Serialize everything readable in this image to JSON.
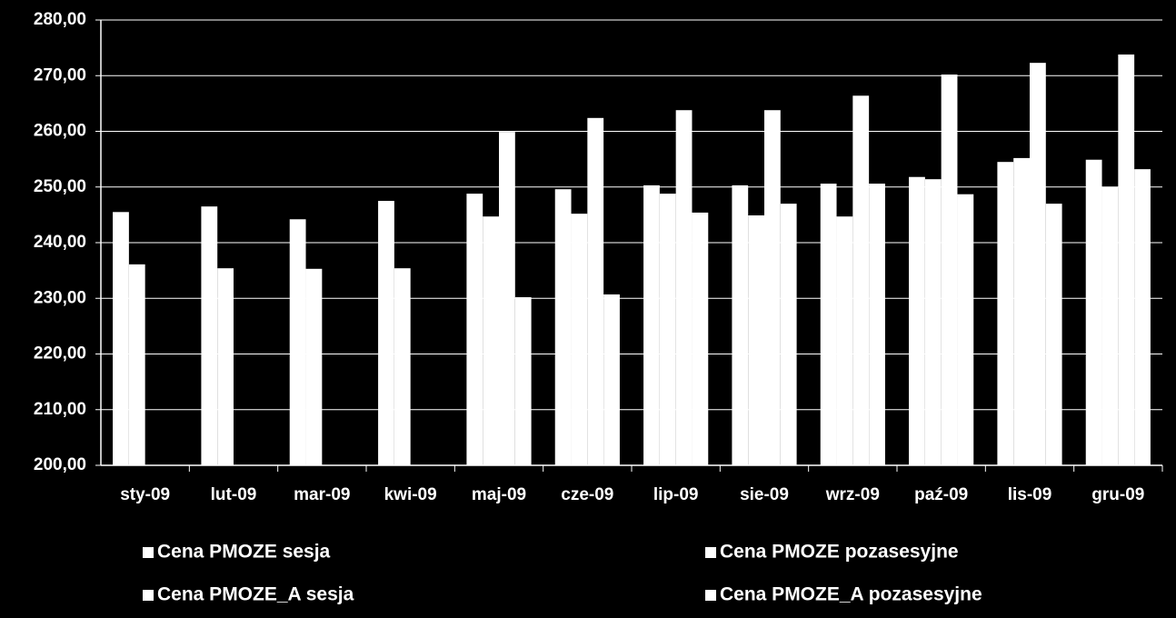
{
  "chart_data": {
    "type": "bar",
    "categories": [
      "sty-09",
      "lut-09",
      "mar-09",
      "kwi-09",
      "maj-09",
      "cze-09",
      "lip-09",
      "sie-09",
      "wrz-09",
      "paź-09",
      "lis-09",
      "gru-09"
    ],
    "series": [
      {
        "name": "Cena PMOZE sesja",
        "color": "#ffffff",
        "values": [
          245.5,
          246.5,
          244.2,
          247.5,
          248.8,
          249.6,
          250.3,
          250.3,
          250.6,
          251.8,
          254.5,
          254.9
        ]
      },
      {
        "name": "Cena PMOZE pozasesyjne",
        "color": "#ffffff",
        "values": [
          236.1,
          235.4,
          235.3,
          235.4,
          244.7,
          245.2,
          248.8,
          244.9,
          244.7,
          251.4,
          255.2,
          250.0
        ]
      },
      {
        "name": "Cena PMOZE_A sesja",
        "color": "#ffffff",
        "values": [
          null,
          null,
          null,
          null,
          259.9,
          262.4,
          263.8,
          263.8,
          266.4,
          270.2,
          272.3,
          273.8
        ]
      },
      {
        "name": "Cena PMOZE_A pozasesyjne",
        "color": "#ffffff",
        "values": [
          null,
          null,
          null,
          null,
          230.2,
          230.7,
          245.4,
          247.0,
          250.6,
          248.7,
          247.0,
          253.2
        ]
      }
    ],
    "ylim": [
      200,
      280
    ],
    "yticks": [
      {
        "value": 200,
        "label": "200,00"
      },
      {
        "value": 210,
        "label": "210,00"
      },
      {
        "value": 220,
        "label": "220,00"
      },
      {
        "value": 230,
        "label": "230,00"
      },
      {
        "value": 240,
        "label": "240,00"
      },
      {
        "value": 250,
        "label": "250,00"
      },
      {
        "value": 260,
        "label": "260,00"
      },
      {
        "value": 270,
        "label": "270,00"
      },
      {
        "value": 280,
        "label": "280,00"
      }
    ],
    "grid": true,
    "legend": "bottom"
  }
}
